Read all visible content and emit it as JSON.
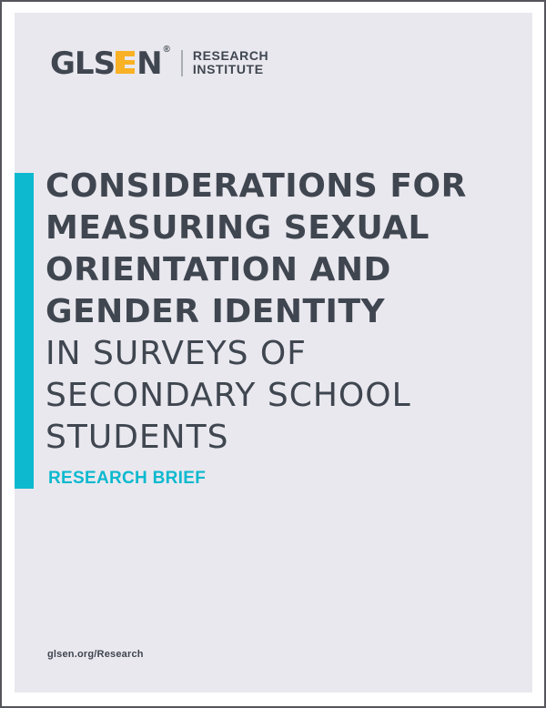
{
  "page": {
    "type": "research-brief-cover",
    "background_color": "#e9e8ee",
    "accent_teal": "#0cb9cf",
    "brand_yellow": "#f9b125",
    "text_dark": "#3f4650"
  },
  "logo": {
    "gls": "GLS",
    "e": "E",
    "n": "N",
    "registered": "®",
    "org_line1": "RESEARCH",
    "org_line2": "INSTITUTE"
  },
  "title": {
    "bold_lines": [
      "CONSIDERATIONS FOR",
      "MEASURING SEXUAL",
      "ORIENTATION AND",
      "GENDER IDENTITY"
    ],
    "regular_lines": [
      "IN SURVEYS OF",
      "SECONDARY SCHOOL",
      "STUDENTS"
    ]
  },
  "kicker": {
    "label": "RESEARCH BRIEF"
  },
  "footer": {
    "url": "glsen.org/Research"
  }
}
